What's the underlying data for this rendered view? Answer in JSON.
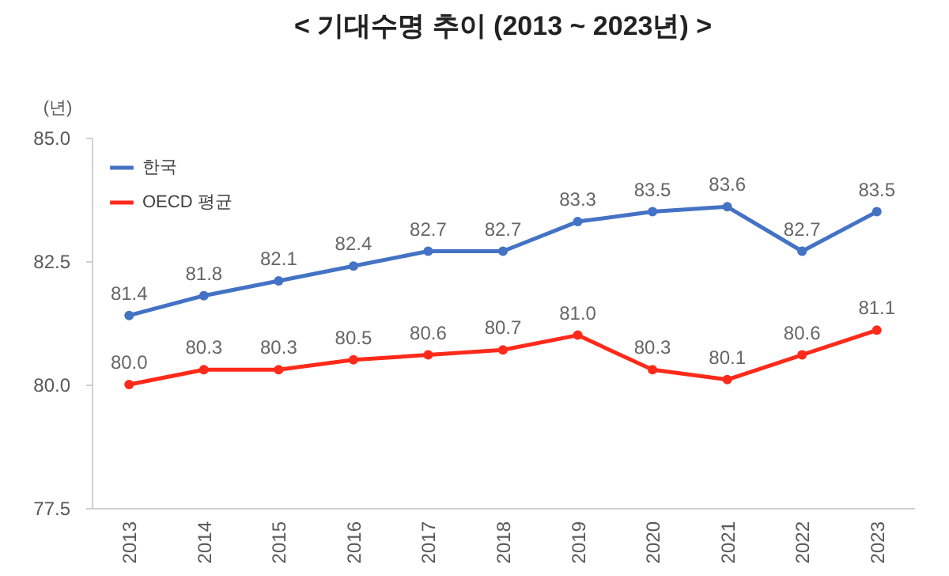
{
  "chart_data": {
    "type": "line",
    "title": "< 기대수명 추이 (2013  ~  2023년) >",
    "ylabel": "(년)",
    "categories": [
      "2013",
      "2014",
      "2015",
      "2016",
      "2017",
      "2018",
      "2019",
      "2020",
      "2021",
      "2022",
      "2023"
    ],
    "series": [
      {
        "name": "한국",
        "color": "#4472c4",
        "values": [
          81.4,
          81.8,
          82.1,
          82.4,
          82.7,
          82.7,
          83.3,
          83.5,
          83.6,
          82.7,
          83.5
        ],
        "value_labels": [
          "81.4",
          "81.8",
          "82.1",
          "82.4",
          "82.7",
          "82.7",
          "83.3",
          "83.5",
          "83.6",
          "82.7",
          "83.5"
        ]
      },
      {
        "name": "OECD 평균",
        "color": "#ff2a1a",
        "values": [
          80.0,
          80.3,
          80.3,
          80.5,
          80.6,
          80.7,
          81.0,
          80.3,
          80.1,
          80.6,
          81.1
        ],
        "value_labels": [
          "80.0",
          "80.3",
          "80.3",
          "80.5",
          "80.6",
          "80.7",
          "81.0",
          "80.3",
          "80.1",
          "80.6",
          "81.1"
        ]
      }
    ],
    "ylim": [
      77.5,
      85
    ],
    "yticks": [
      {
        "value": 77.5,
        "label": "77.5"
      },
      {
        "value": 80,
        "label": "80.0"
      },
      {
        "value": 82.5,
        "label": "82.5"
      },
      {
        "value": 85,
        "label": "85.0"
      }
    ],
    "grid": false,
    "legend": "top left",
    "marker": "circle",
    "line_style": "solid"
  }
}
